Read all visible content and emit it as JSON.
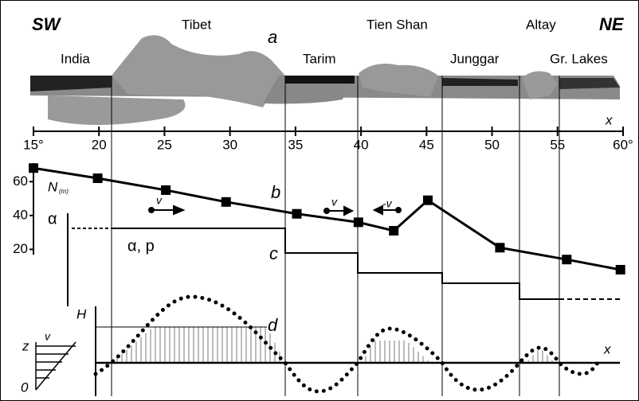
{
  "labels": {
    "sw": "SW",
    "ne": "NE",
    "tibet": "Tibet",
    "tien_shan": "Tien Shan",
    "altay": "Altay",
    "india": "India",
    "tarim": "Tarim",
    "junggar": "Junggar",
    "gr_lakes": "Gr. Lakes",
    "panel_a": "a",
    "panel_b": "b",
    "panel_c": "c",
    "panel_d": "d",
    "x_top": "x",
    "x_bottom": "x",
    "n_label": "N",
    "n_sub": "(m)",
    "alpha_axis": "α",
    "alpha_p": "α, p",
    "v1": "v",
    "v2": "v",
    "minus_v": "-v",
    "h": "H",
    "z": "z",
    "v_profile": "v",
    "zero": "0"
  },
  "chart_data": {
    "type": "line",
    "x": [
      15.0,
      19.9,
      25.1,
      29.7,
      35.1,
      39.8,
      42.5,
      45.1,
      50.6,
      55.7,
      59.8
    ],
    "values": [
      68,
      62,
      55,
      48,
      41,
      36,
      31,
      49,
      21,
      14,
      8
    ],
    "color": "#000000",
    "xlim": [
      15,
      60
    ],
    "xticks": [
      {
        "value": 15,
        "label": "15°"
      },
      20,
      25,
      30,
      35,
      40,
      45,
      50,
      55,
      {
        "value": 60,
        "label": "60°"
      }
    ],
    "ylim": [
      0,
      70
    ],
    "yticks": [
      20,
      40,
      60
    ]
  }
}
